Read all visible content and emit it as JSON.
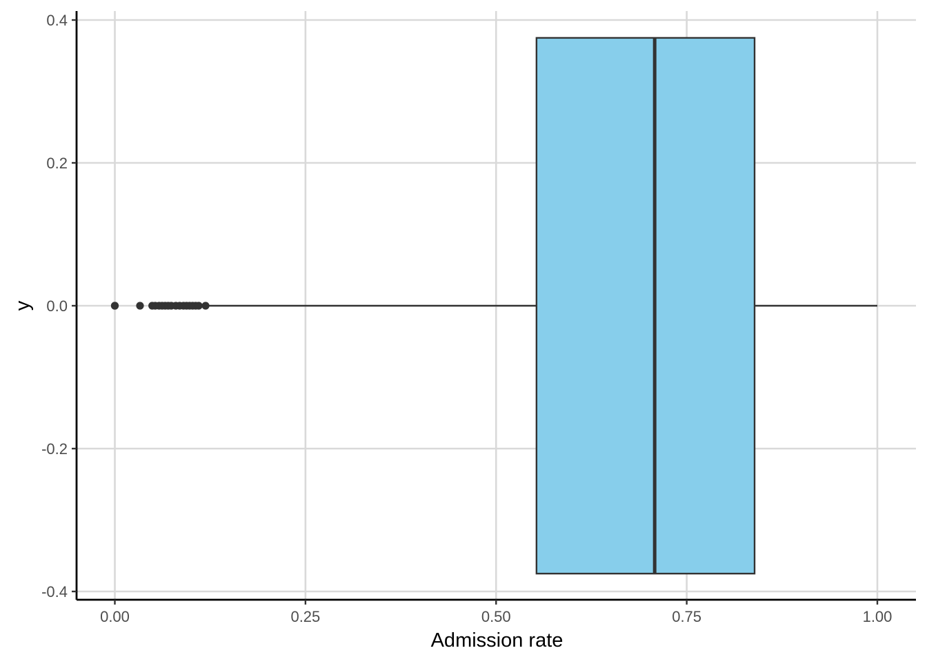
{
  "chart_data": {
    "type": "boxplot",
    "orientation": "horizontal",
    "title": "",
    "xlabel": "Admission rate",
    "ylabel": "y",
    "xlim": [
      -0.1,
      1.05
    ],
    "ylim": [
      -0.42,
      0.42
    ],
    "x_ticks": [
      0.0,
      0.25,
      0.5,
      0.75,
      1.0
    ],
    "x_tick_labels": [
      "0.00",
      "0.25",
      "0.50",
      "0.75",
      "1.00"
    ],
    "y_ticks": [
      0.4,
      0.2,
      0.0,
      -0.2,
      -0.4
    ],
    "y_tick_labels": [
      "0.4",
      "0.2",
      "0.0",
      "-0.2",
      "-0.4"
    ],
    "grid": true,
    "box": {
      "y": 0.0,
      "lower_whisker": 0.12,
      "q1": 0.553,
      "median": 0.708,
      "q3": 0.839,
      "upper_whisker": 1.0,
      "box_half_height": 0.375,
      "fill": "#87CEEB",
      "stroke": "#333333"
    },
    "outliers": [
      0.0,
      0.0,
      0.033,
      0.049,
      0.053,
      0.058,
      0.062,
      0.066,
      0.07,
      0.074,
      0.08,
      0.085,
      0.09,
      0.094,
      0.098,
      0.102,
      0.106,
      0.11,
      0.119
    ],
    "outlier_color": "#333333"
  }
}
